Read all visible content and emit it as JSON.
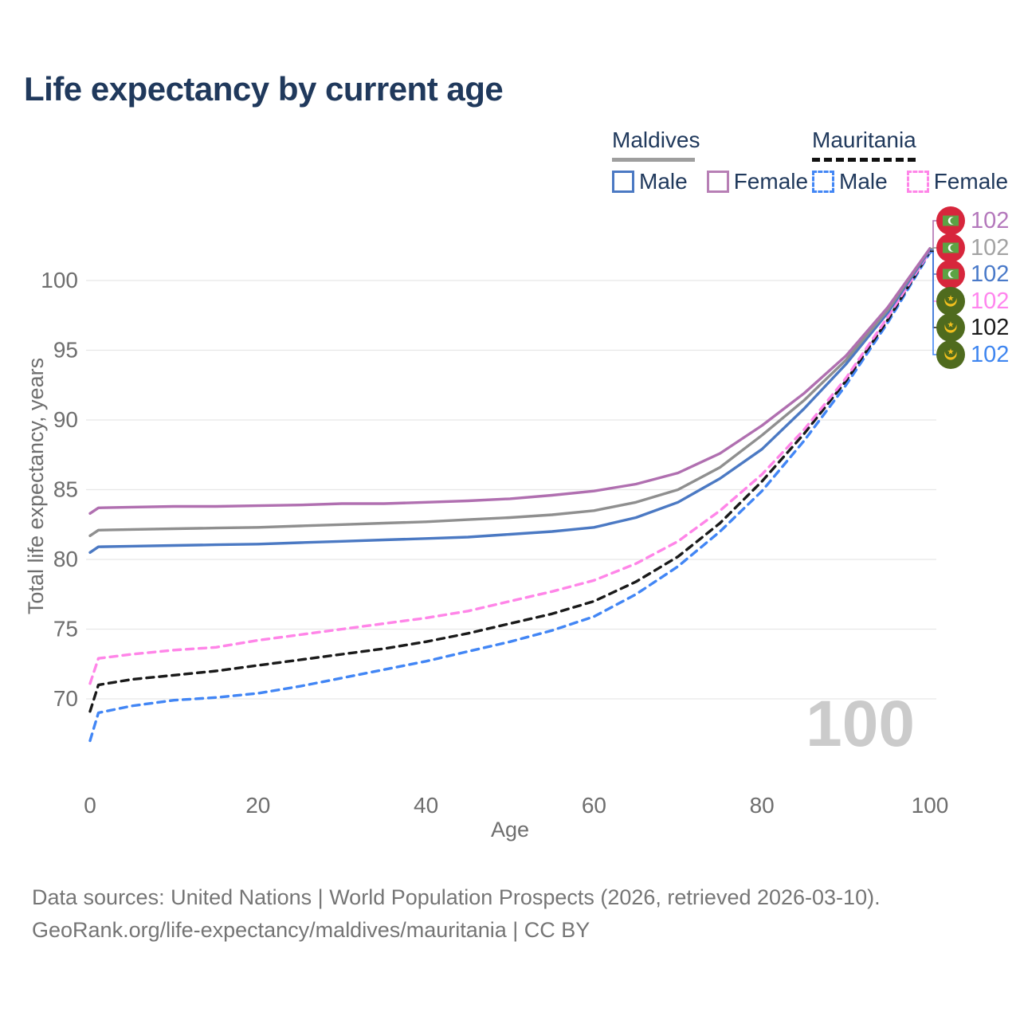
{
  "title": "Life expectancy by current age",
  "legend": {
    "groups": [
      {
        "country": "Maldives",
        "line_style": "solid",
        "underline_color": "#9e9e9e",
        "items": [
          {
            "label": "Male",
            "color": "#4b79c3",
            "dashed": false
          },
          {
            "label": "Female",
            "color": "#b77fb5",
            "dashed": false
          }
        ]
      },
      {
        "country": "Mauritania",
        "line_style": "dashed",
        "underline_color": "#111111",
        "items": [
          {
            "label": "Male",
            "color": "#4286f5",
            "dashed": true
          },
          {
            "label": "Female",
            "color": "#ff85e8",
            "dashed": true
          }
        ]
      }
    ]
  },
  "chart_data": {
    "type": "line",
    "title": "Life expectancy by current age",
    "xlabel": "Age",
    "ylabel": "Total life expectancy, years",
    "xlim": [
      0,
      100
    ],
    "ylim": [
      66,
      104
    ],
    "xticks": [
      0,
      20,
      40,
      60,
      80,
      100
    ],
    "yticks": [
      70,
      75,
      80,
      85,
      90,
      95,
      100
    ],
    "grid": "horizontal-only",
    "legend_position": "top-right",
    "watermark": "100",
    "x": [
      0,
      1,
      5,
      10,
      15,
      20,
      25,
      30,
      35,
      40,
      45,
      50,
      55,
      60,
      65,
      70,
      75,
      80,
      85,
      90,
      95,
      100
    ],
    "series": [
      {
        "name": "Mauritania Male",
        "country": "Mauritania",
        "sex": "Male",
        "color": "#4286f5",
        "label_color": "#3f86f0",
        "dashed": true,
        "end_label": "102",
        "values": [
          67.0,
          69.0,
          69.5,
          69.9,
          70.1,
          70.4,
          70.9,
          71.5,
          72.1,
          72.7,
          73.4,
          74.1,
          74.9,
          75.9,
          77.5,
          79.5,
          82.0,
          84.9,
          88.5,
          92.5,
          97.0,
          102.0
        ]
      },
      {
        "name": "Mauritania",
        "country": "Mauritania",
        "sex": "Both sexes",
        "color": "#1a1a1a",
        "label_color": "#1a1a1a",
        "dashed": true,
        "end_label": "102",
        "values": [
          69.1,
          71.0,
          71.4,
          71.7,
          72.0,
          72.4,
          72.8,
          73.2,
          73.6,
          74.1,
          74.7,
          75.4,
          76.1,
          77.0,
          78.4,
          80.2,
          82.6,
          85.6,
          89.0,
          92.8,
          97.2,
          102.1
        ]
      },
      {
        "name": "Mauritania Female",
        "country": "Mauritania",
        "sex": "Female",
        "color": "#ff85e8",
        "label_color": "#ff85ee",
        "dashed": true,
        "end_label": "102",
        "values": [
          71.1,
          72.9,
          73.2,
          73.5,
          73.7,
          74.2,
          74.6,
          75.0,
          75.4,
          75.8,
          76.3,
          77.0,
          77.7,
          78.5,
          79.7,
          81.3,
          83.5,
          86.1,
          89.3,
          93.0,
          97.4,
          102.1
        ]
      },
      {
        "name": "Maldives Male",
        "country": "Maldives",
        "sex": "Male",
        "color": "#4b79c3",
        "label_color": "#4a7ac9",
        "dashed": false,
        "end_label": "102",
        "values": [
          80.5,
          80.9,
          80.95,
          81.0,
          81.05,
          81.1,
          81.2,
          81.3,
          81.4,
          81.5,
          81.6,
          81.8,
          82.0,
          82.3,
          83.0,
          84.1,
          85.8,
          87.9,
          90.8,
          94.0,
          97.7,
          102.2
        ]
      },
      {
        "name": "Maldives",
        "country": "Maldives",
        "sex": "Both sexes",
        "color": "#8f8f8f",
        "label_color": "#a3a3a3",
        "dashed": false,
        "end_label": "102",
        "values": [
          81.7,
          82.1,
          82.15,
          82.2,
          82.25,
          82.3,
          82.4,
          82.5,
          82.6,
          82.7,
          82.85,
          83.0,
          83.2,
          83.5,
          84.1,
          85.0,
          86.6,
          88.9,
          91.4,
          94.3,
          97.9,
          102.3
        ]
      },
      {
        "name": "Maldives Female",
        "country": "Maldives",
        "sex": "Female",
        "color": "#b06fb0",
        "label_color": "#b478bc",
        "dashed": false,
        "end_label": "102",
        "values": [
          83.3,
          83.7,
          83.75,
          83.8,
          83.8,
          83.85,
          83.9,
          84.0,
          84.0,
          84.1,
          84.2,
          84.35,
          84.6,
          84.9,
          85.4,
          86.2,
          87.6,
          89.6,
          91.9,
          94.6,
          98.1,
          102.3
        ]
      }
    ]
  },
  "end_labels_order_note": "top to bottom: Maldives Female, Maldives, Maldives Male, Mauritania Female, Mauritania, Mauritania Male",
  "footer": {
    "line1": "Data sources: United Nations | World Population Prospects (2026, retrieved 2026-03-10).",
    "line2": "GeoRank.org/life-expectancy/maldives/mauritania | CC BY"
  }
}
